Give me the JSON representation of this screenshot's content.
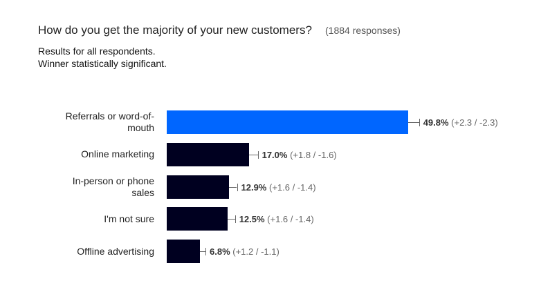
{
  "header": {
    "title": "How do you get the majority of your new customers?",
    "responses": "(1884 responses)",
    "subtitle_1": "Results for all respondents.",
    "subtitle_2": "Winner statistically significant."
  },
  "chart_data": {
    "type": "bar",
    "orientation": "horizontal",
    "title": "How do you get the majority of your new customers?",
    "categories": [
      "Referrals or word-of-mouth",
      "Online marketing",
      "In-person or phone sales",
      "I'm not sure",
      "Offline advertising"
    ],
    "values": [
      49.8,
      17.0,
      12.9,
      12.5,
      6.8
    ],
    "value_labels": [
      "49.8%",
      "17.0%",
      "12.9%",
      "12.5%",
      "6.8%"
    ],
    "ci_labels": [
      "(+2.3 / -2.3)",
      "(+1.8 / -1.6)",
      "(+1.6 / -1.4)",
      "(+1.6 / -1.4)",
      "(+1.2 / -1.1)"
    ],
    "ci_plus": [
      2.3,
      1.8,
      1.6,
      1.6,
      1.2
    ],
    "colors": [
      "#0066ff",
      "#000020",
      "#000020",
      "#000020",
      "#000020"
    ],
    "unit": "%"
  }
}
